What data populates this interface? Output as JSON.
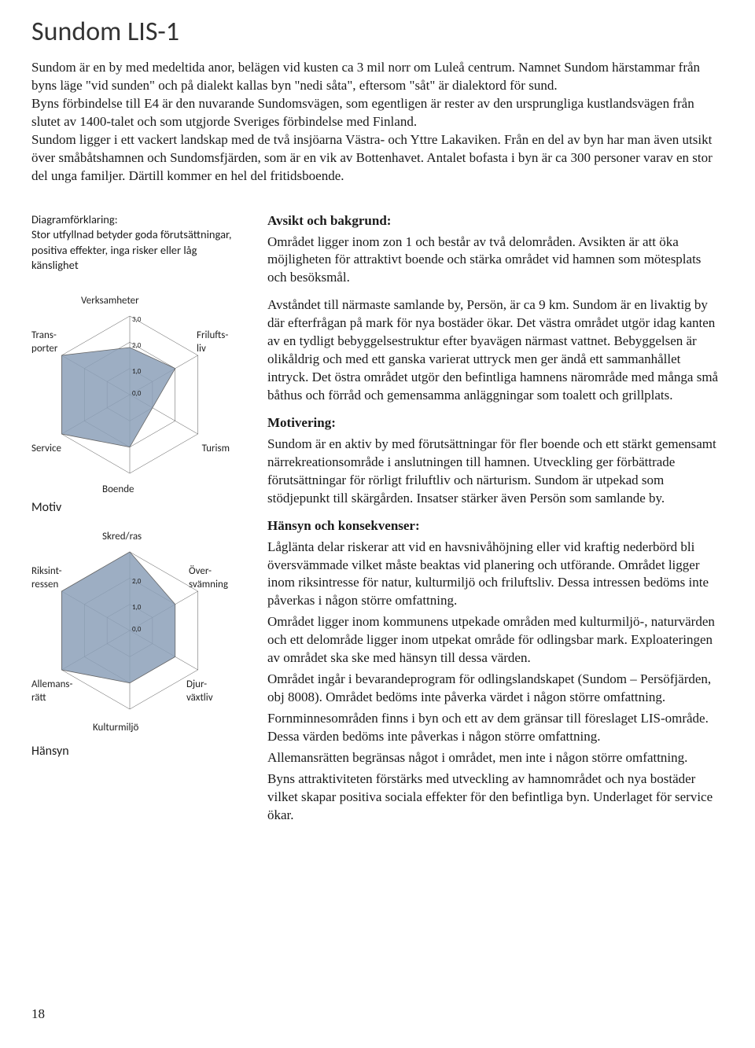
{
  "title": "Sundom LIS-1",
  "intro": "Sundom är en by med medeltida anor, belägen vid kusten ca 3 mil norr om Luleå centrum. Namnet Sundom härstammar från byns läge \"vid sunden\" och på dialekt kallas byn \"nedi såta\", eftersom \"såt\" är dialektord för sund.\nByns förbindelse till E4 är den nuvarande Sundomsvägen, som egentligen är rester av den ursprungliga kustlandsvägen från slutet av 1400-talet och som utgjorde Sveriges förbindelse med Finland.\nSundom ligger i ett vackert landskap med de två insjöarna Västra- och Yttre Lakaviken. Från en del av byn har man även utsikt över småbåtshamnen och Sundomsfjärden, som är en vik av Bottenhavet. Antalet bofasta i byn är ca 300 personer varav en stor del unga familjer. Därtill kommer en hel del fritidsboende.",
  "diagram_caption": "Diagramförklaring:\nStor utfyllnad betyder goda förutsättningar, positiva effekter, inga risker eller låg känslighet",
  "chart1": {
    "type": "radar",
    "title": "Motiv",
    "axes": [
      "Verksamheter",
      "Friluftsliv",
      "Turism",
      "Boende",
      "Service",
      "Transporter"
    ],
    "values": [
      1.8,
      2.0,
      1.0,
      2.0,
      3.0,
      3.0
    ],
    "max": 3.0,
    "ticks": [
      "0,0",
      "1,0",
      "2,0",
      "3,0"
    ],
    "fill_color": "#8ca0b8",
    "fill_opacity": 0.85,
    "line_color": "#666",
    "grid_color": "#555"
  },
  "chart2": {
    "type": "radar",
    "title": "Hänsyn",
    "axes": [
      "Skred/ras",
      "Översvämning",
      "Djurväxtliv",
      "Kulturmiljö",
      "Allemansrätt",
      "Riksintressen"
    ],
    "values": [
      3.0,
      2.0,
      2.0,
      2.0,
      3.0,
      3.0
    ],
    "max": 3.0,
    "ticks": [
      "0,0",
      "1,0",
      "2,0"
    ],
    "fill_color": "#8ca0b8",
    "fill_opacity": 0.85,
    "line_color": "#666",
    "grid_color": "#555"
  },
  "sections": {
    "s1_head": "Avsikt och bakgrund:",
    "s1_p1": "Området ligger inom zon 1 och består av två delområden. Avsikten är att öka möjligheten för attraktivt boende och stärka området vid hamnen som mötesplats och besöksmål.",
    "s1_p2": "Avståndet till närmaste  samlande by, Persön, är ca 9 km. Sundom är en livaktig by där efterfrågan på mark för nya bostäder ökar. Det västra området utgör idag kanten av en tydligt bebyggelsestruktur efter byavägen närmast vattnet. Bebyggelsen är olikåldrig och med ett ganska varierat uttryck men ger ändå ett sammanhållet intryck. Det östra området utgör den befintliga hamnens närområde med många små båthus och förråd och gemensamma anläggningar som toalett och grillplats.",
    "s2_head": "Motivering:",
    "s2_p1": "Sundom är en aktiv by med förutsättningar för fler boende och ett stärkt gemensamt närrekreationsområde i anslutningen till hamnen. Utveckling ger förbättrade förutsättningar för rörligt friluftliv och närturism. Sundom är utpekad som stödjepunkt till skärgården. Insatser stärker även Persön som samlande by.",
    "s3_head": "Hänsyn och konsekvenser:",
    "s3_p1": "Låglänta delar riskerar att vid en havsnivåhöjning eller vid kraftig nederbörd bli översvämmade vilket måste beaktas vid planering och utförande.  Området ligger inom riksintresse för natur, kulturmiljö och friluftsliv. Dessa intressen bedöms inte påverkas i någon större omfattning.",
    "s3_p2": "Området ligger inom kommunens utpekade områden med kulturmiljö-, naturvärden och ett delområde ligger inom utpekat område för odlingsbar mark. Exploateringen av området ska ske med hänsyn till dessa värden.",
    "s3_p3": "Området ingår i bevarandeprogram för odlingslandskapet (Sundom – Persöfjärden, obj 8008). Området bedöms inte påverka värdet i någon större omfattning.",
    "s3_p4": "Fornminnesområden finns i byn och ett av dem gränsar till föreslaget LIS-område. Dessa värden bedöms inte påverkas i någon större omfattning.",
    "s3_p5": "Allemansrätten begränsas något i området, men inte i någon större omfattning.",
    "s3_p6": "Byns attraktiviteten förstärks med utveckling av hamnområdet och nya bostäder vilket skapar positiva sociala effekter för den befintliga byn. Underlaget för service ökar."
  },
  "page_number": "18"
}
